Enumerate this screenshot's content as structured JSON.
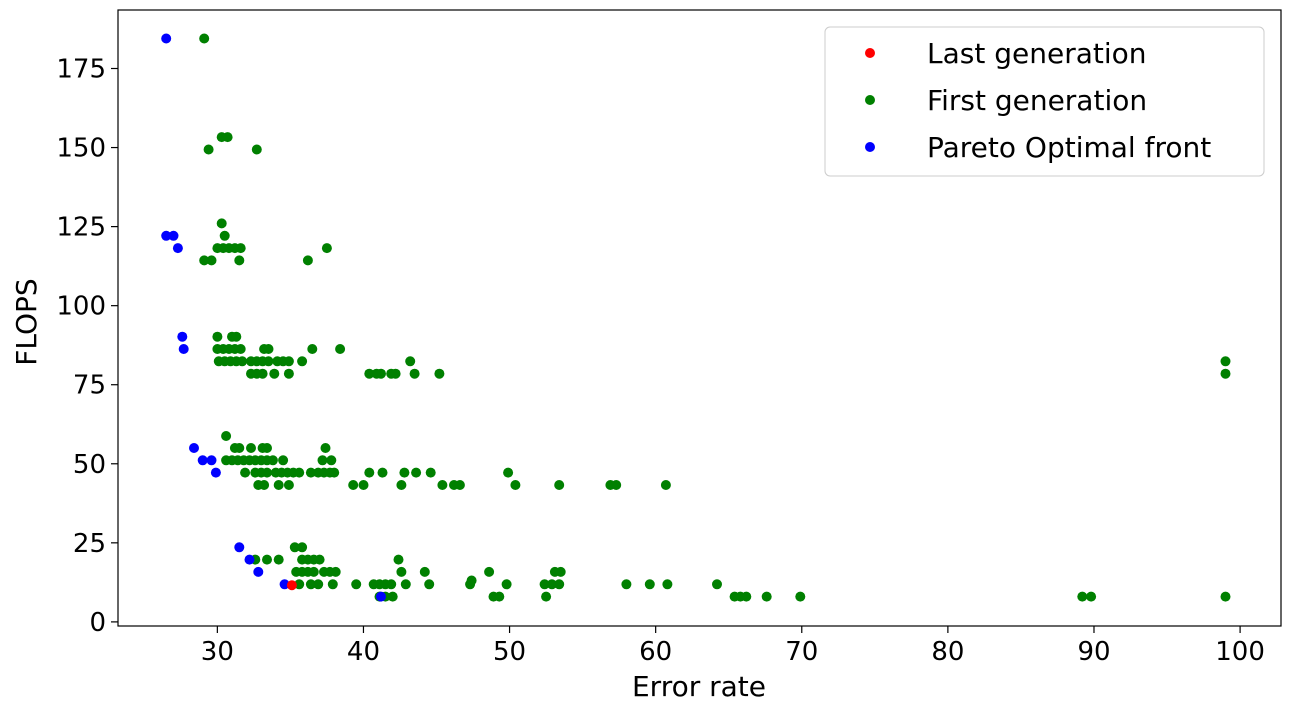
{
  "chart_data": {
    "type": "scatter",
    "xlabel": "Error rate",
    "ylabel": "FLOPS",
    "xlim": [
      23.2,
      102.8
    ],
    "ylim": [
      -1.3,
      193.5
    ],
    "xticks": [
      "30",
      "40",
      "50",
      "60",
      "70",
      "80",
      "90",
      "100"
    ],
    "yticks": [
      "0",
      "25",
      "50",
      "75",
      "100",
      "125",
      "150",
      "175"
    ],
    "grid": false,
    "legend_position": "top-right",
    "series": [
      {
        "name": "Last generation",
        "color": "#ff0000",
        "points": [
          [
            35.1,
            11.6
          ]
        ]
      },
      {
        "name": "First generation",
        "color": "#008000",
        "points": [
          [
            29.1,
            184.5
          ],
          [
            29.4,
            149.4
          ],
          [
            30.3,
            153.3
          ],
          [
            30.7,
            153.3
          ],
          [
            32.7,
            149.4
          ],
          [
            30.3,
            126.0
          ],
          [
            30.5,
            122.1
          ],
          [
            30.0,
            118.2
          ],
          [
            30.4,
            118.2
          ],
          [
            30.8,
            118.2
          ],
          [
            31.2,
            118.2
          ],
          [
            31.6,
            118.2
          ],
          [
            29.1,
            114.3
          ],
          [
            29.6,
            114.3
          ],
          [
            31.5,
            114.3
          ],
          [
            37.5,
            118.2
          ],
          [
            36.2,
            114.3
          ],
          [
            30.0,
            90.2
          ],
          [
            31.0,
            90.2
          ],
          [
            31.3,
            90.2
          ],
          [
            30.0,
            86.3
          ],
          [
            30.4,
            86.3
          ],
          [
            30.8,
            86.3
          ],
          [
            31.2,
            86.3
          ],
          [
            31.6,
            86.3
          ],
          [
            33.2,
            86.3
          ],
          [
            33.5,
            86.3
          ],
          [
            36.5,
            86.3
          ],
          [
            38.4,
            86.3
          ],
          [
            30.1,
            82.4
          ],
          [
            30.5,
            82.4
          ],
          [
            30.9,
            82.4
          ],
          [
            31.3,
            82.4
          ],
          [
            31.7,
            82.4
          ],
          [
            32.3,
            82.4
          ],
          [
            32.7,
            82.4
          ],
          [
            33.1,
            82.4
          ],
          [
            33.5,
            82.4
          ],
          [
            34.1,
            82.4
          ],
          [
            34.5,
            82.4
          ],
          [
            34.9,
            82.4
          ],
          [
            35.8,
            82.4
          ],
          [
            43.2,
            82.4
          ],
          [
            99.0,
            82.4
          ],
          [
            32.3,
            78.5
          ],
          [
            32.7,
            78.5
          ],
          [
            33.1,
            78.5
          ],
          [
            33.9,
            78.5
          ],
          [
            34.9,
            78.5
          ],
          [
            40.4,
            78.5
          ],
          [
            40.9,
            78.5
          ],
          [
            41.2,
            78.5
          ],
          [
            41.9,
            78.5
          ],
          [
            42.2,
            78.5
          ],
          [
            43.5,
            78.5
          ],
          [
            45.2,
            78.5
          ],
          [
            99.0,
            78.5
          ],
          [
            30.6,
            58.8
          ],
          [
            31.2,
            55.0
          ],
          [
            31.5,
            55.0
          ],
          [
            32.3,
            55.0
          ],
          [
            33.1,
            55.0
          ],
          [
            33.4,
            55.0
          ],
          [
            37.4,
            55.0
          ],
          [
            30.6,
            51.1
          ],
          [
            31.0,
            51.1
          ],
          [
            31.4,
            51.1
          ],
          [
            31.8,
            51.1
          ],
          [
            32.2,
            51.1
          ],
          [
            32.6,
            51.1
          ],
          [
            33.0,
            51.1
          ],
          [
            33.4,
            51.1
          ],
          [
            33.8,
            51.1
          ],
          [
            34.5,
            51.1
          ],
          [
            37.2,
            51.1
          ],
          [
            37.8,
            51.1
          ],
          [
            31.9,
            47.2
          ],
          [
            32.6,
            47.2
          ],
          [
            33.0,
            47.2
          ],
          [
            33.4,
            47.2
          ],
          [
            34.0,
            47.2
          ],
          [
            34.4,
            47.2
          ],
          [
            34.8,
            47.2
          ],
          [
            35.2,
            47.2
          ],
          [
            35.6,
            47.2
          ],
          [
            36.4,
            47.2
          ],
          [
            36.9,
            47.2
          ],
          [
            37.3,
            47.2
          ],
          [
            37.7,
            47.2
          ],
          [
            38.0,
            47.2
          ],
          [
            40.4,
            47.2
          ],
          [
            41.3,
            47.2
          ],
          [
            42.8,
            47.2
          ],
          [
            43.6,
            47.2
          ],
          [
            44.6,
            47.2
          ],
          [
            49.9,
            47.2
          ],
          [
            32.8,
            43.3
          ],
          [
            33.2,
            43.3
          ],
          [
            34.2,
            43.3
          ],
          [
            34.9,
            43.3
          ],
          [
            39.3,
            43.3
          ],
          [
            40.0,
            43.3
          ],
          [
            42.6,
            43.3
          ],
          [
            45.4,
            43.3
          ],
          [
            46.2,
            43.3
          ],
          [
            46.6,
            43.3
          ],
          [
            50.4,
            43.3
          ],
          [
            53.4,
            43.3
          ],
          [
            56.9,
            43.3
          ],
          [
            57.3,
            43.3
          ],
          [
            60.7,
            43.3
          ],
          [
            35.3,
            23.6
          ],
          [
            35.8,
            23.6
          ],
          [
            32.6,
            19.7
          ],
          [
            33.4,
            19.7
          ],
          [
            34.2,
            19.7
          ],
          [
            35.8,
            19.7
          ],
          [
            36.2,
            19.7
          ],
          [
            36.6,
            19.7
          ],
          [
            37.0,
            19.7
          ],
          [
            42.4,
            19.7
          ],
          [
            35.4,
            15.8
          ],
          [
            35.8,
            15.8
          ],
          [
            36.2,
            15.8
          ],
          [
            36.6,
            15.8
          ],
          [
            37.3,
            15.8
          ],
          [
            37.7,
            15.8
          ],
          [
            38.1,
            15.8
          ],
          [
            42.6,
            15.8
          ],
          [
            44.2,
            15.8
          ],
          [
            48.6,
            15.8
          ],
          [
            53.1,
            15.8
          ],
          [
            53.5,
            15.8
          ],
          [
            35.6,
            11.9
          ],
          [
            36.4,
            11.9
          ],
          [
            36.9,
            11.9
          ],
          [
            37.9,
            11.9
          ],
          [
            39.5,
            11.9
          ],
          [
            40.7,
            11.9
          ],
          [
            41.1,
            11.9
          ],
          [
            41.5,
            11.9
          ],
          [
            41.9,
            11.9
          ],
          [
            42.9,
            11.9
          ],
          [
            44.5,
            11.9
          ],
          [
            47.3,
            11.9
          ],
          [
            49.8,
            11.9
          ],
          [
            52.4,
            11.9
          ],
          [
            52.9,
            11.9
          ],
          [
            53.4,
            11.9
          ],
          [
            58.0,
            11.9
          ],
          [
            59.6,
            11.9
          ],
          [
            60.8,
            11.9
          ],
          [
            64.2,
            11.9
          ],
          [
            47.4,
            13.1
          ],
          [
            41.1,
            8.0
          ],
          [
            41.5,
            8.0
          ],
          [
            42.0,
            8.0
          ],
          [
            48.9,
            8.0
          ],
          [
            49.3,
            8.0
          ],
          [
            52.5,
            8.0
          ],
          [
            65.4,
            8.0
          ],
          [
            65.8,
            8.0
          ],
          [
            66.2,
            8.0
          ],
          [
            67.6,
            8.0
          ],
          [
            69.9,
            8.0
          ],
          [
            89.2,
            8.0
          ],
          [
            89.8,
            8.0
          ],
          [
            99.0,
            8.0
          ]
        ]
      },
      {
        "name": "Pareto Optimal front",
        "color": "#0000ff",
        "points": [
          [
            26.5,
            184.5
          ],
          [
            26.5,
            122.1
          ],
          [
            27.0,
            122.1
          ],
          [
            27.3,
            118.2
          ],
          [
            27.6,
            90.2
          ],
          [
            27.7,
            86.3
          ],
          [
            28.4,
            55.0
          ],
          [
            29.0,
            51.1
          ],
          [
            29.6,
            51.1
          ],
          [
            29.9,
            47.2
          ],
          [
            31.5,
            23.6
          ],
          [
            32.2,
            19.7
          ],
          [
            32.8,
            15.8
          ],
          [
            34.6,
            11.9
          ],
          [
            41.2,
            8.0
          ]
        ]
      }
    ]
  }
}
